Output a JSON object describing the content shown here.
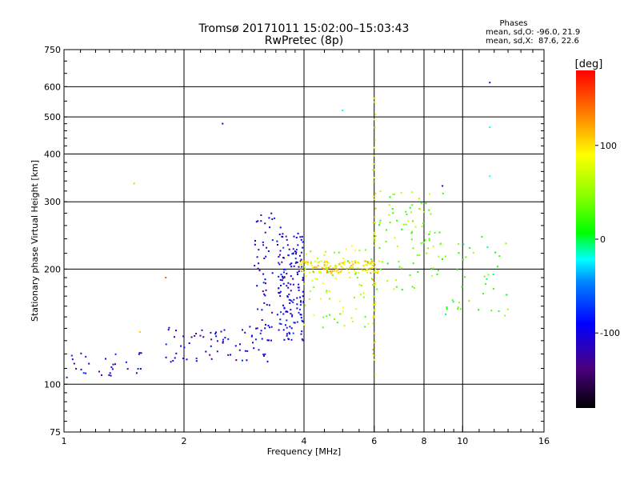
{
  "chart_data": {
    "type": "scatter",
    "title": "Tromsø 20171011 15:02:00–15:03:43",
    "subtitle": "RwPretec (8p)",
    "stats": {
      "heading": "Phases",
      "line_o": "mean, sd,O: -96.0, 21.9",
      "line_x": "mean, sd,X:  87.6, 22.6"
    },
    "xlabel": "Frequency [MHz]",
    "ylabel": "Stationary phase Virtual Height [km]",
    "xscale": "log",
    "yscale": "log",
    "xlim": [
      1,
      16
    ],
    "ylim": [
      75,
      750
    ],
    "grid": true,
    "xticks": [
      1,
      2,
      4,
      6,
      8,
      10,
      16
    ],
    "yticks": [
      75,
      100,
      200,
      300,
      400,
      500,
      600,
      750
    ],
    "colorbar": {
      "label": "[deg]",
      "range": [
        -180,
        180
      ],
      "ticks": [
        100,
        0,
        -100
      ]
    },
    "clusters": [
      {
        "name": "low-frequency trace",
        "fmin": 1.0,
        "fmax": 1.6,
        "hmin": 104,
        "hmax": 122,
        "phase": -110,
        "points": 30
      },
      {
        "name": "rising trace",
        "fmin": 1.8,
        "fmax": 3.4,
        "hmin": 114,
        "hmax": 142,
        "phase": -105,
        "points": 70
      },
      {
        "name": "blue column 3.3 MHz",
        "fmin": 3.0,
        "fmax": 3.5,
        "hmin": 135,
        "hmax": 285,
        "phase": -110,
        "points": 60
      },
      {
        "name": "blue column 3.7 MHz",
        "fmin": 3.45,
        "fmax": 4.0,
        "hmin": 130,
        "hmax": 250,
        "phase": -100,
        "points": 150
      },
      {
        "name": "yellow band",
        "fmin": 3.9,
        "fmax": 6.2,
        "hmin": 195,
        "hmax": 210,
        "phase": 95,
        "points": 130
      },
      {
        "name": "mixed scatter 4-6 MHz",
        "fmin": 4.0,
        "fmax": 6.0,
        "hmin": 140,
        "hmax": 230,
        "phase": 60,
        "points": 70
      },
      {
        "name": "vertical line 6 MHz",
        "fmin": 5.95,
        "fmax": 6.05,
        "hmin": 105,
        "hmax": 620,
        "phase": 90,
        "points": 50
      },
      {
        "name": "scatter 6-9 MHz",
        "fmin": 6.0,
        "fmax": 9.0,
        "hmin": 175,
        "hmax": 320,
        "phase": 40,
        "points": 90
      },
      {
        "name": "scatter 9-13 MHz",
        "fmin": 9.0,
        "fmax": 13.0,
        "hmin": 150,
        "hmax": 250,
        "phase": 20,
        "points": 40
      }
    ],
    "outliers": [
      {
        "f": 1.5,
        "h": 335,
        "phase": 110
      },
      {
        "f": 1.8,
        "h": 190,
        "phase": 150
      },
      {
        "f": 2.5,
        "h": 480,
        "phase": -110
      },
      {
        "f": 5.0,
        "h": 520,
        "phase": -20
      },
      {
        "f": 8.9,
        "h": 330,
        "phase": -100
      },
      {
        "f": 11.7,
        "h": 615,
        "phase": -110
      },
      {
        "f": 11.7,
        "h": 470,
        "phase": -20
      },
      {
        "f": 11.7,
        "h": 350,
        "phase": -20
      },
      {
        "f": 1.55,
        "h": 137,
        "phase": 110
      }
    ]
  }
}
